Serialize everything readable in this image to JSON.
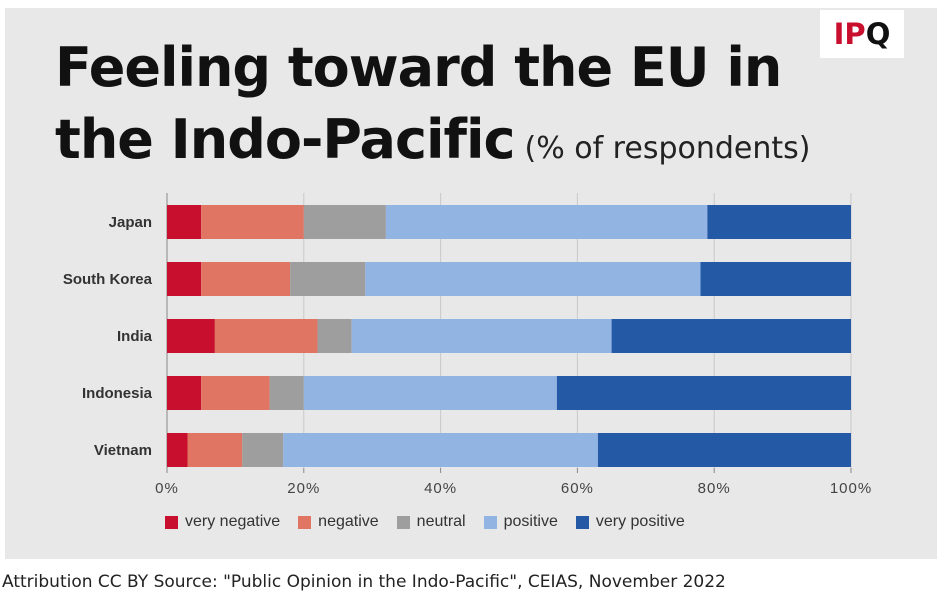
{
  "chart_data": {
    "type": "bar",
    "orientation": "horizontal",
    "stacked": true,
    "title_line1": "Feeling toward the EU in",
    "title_line2": "the Indo-Pacific",
    "title_suffix": "(% of respondents)",
    "categories": [
      "Japan",
      "South Korea",
      "India",
      "Indonesia",
      "Vietnam"
    ],
    "series": [
      {
        "name": "very negative",
        "color": "#c8102e",
        "values": [
          5,
          5,
          7,
          5,
          3
        ]
      },
      {
        "name": "negative",
        "color": "#e07563",
        "values": [
          15,
          13,
          15,
          10,
          8
        ]
      },
      {
        "name": "neutral",
        "color": "#9e9e9e",
        "values": [
          12,
          11,
          5,
          5,
          6
        ]
      },
      {
        "name": "positive",
        "color": "#92b4e2",
        "values": [
          47,
          49,
          38,
          37,
          46
        ]
      },
      {
        "name": "very positive",
        "color": "#2459a6",
        "values": [
          21,
          22,
          35,
          43,
          37
        ]
      }
    ],
    "xlim": [
      0,
      100
    ],
    "xticks": [
      "0%",
      "20%",
      "40%",
      "60%",
      "80%",
      "100%"
    ],
    "grid": true,
    "legend_position": "bottom"
  },
  "logo": {
    "text_red": "IP",
    "text_black": "Q"
  },
  "attribution": "Attribution CC BY Source: \"Public Opinion in the Indo-Pacific\", CEIAS, November 2022"
}
